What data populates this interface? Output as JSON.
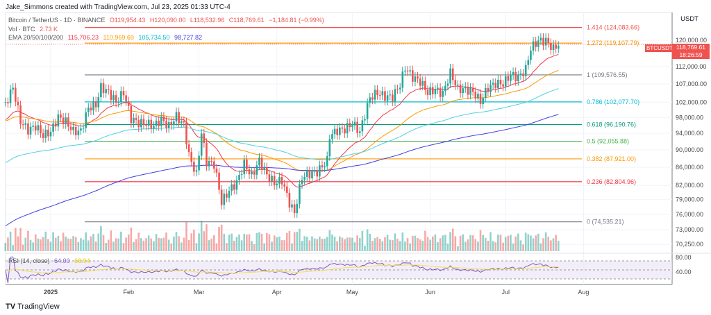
{
  "credit": "Jake_Simmons created with TradingView.com, Jul 23, 2025 01:33 UTC-4",
  "legend": {
    "symbol": "Bitcoin / TetherUS · 1D · BINANCE",
    "open": "O119,954.43",
    "high": "H120,090.00",
    "low": "L118,532.96",
    "close": "C118,769.61",
    "change": "−1,184.81 (−0.99%)",
    "vol_label": "Vol · BTC",
    "vol_value": "2.73 K",
    "ema_label": "EMA 20/50/100/200",
    "ema20": "115,706.23",
    "ema50": "110,969.69",
    "ema100": "105,734.50",
    "ema200": "98,727.82",
    "rsi_label": "RSI (14, close)",
    "rsi": "64.00",
    "rsi_ma": "68.94"
  },
  "currency": "USDT",
  "price_tag": {
    "symbol": "BTCUSDT",
    "price": "118,769.61",
    "countdown": "18:26:59"
  },
  "brand": "TradingView",
  "colors": {
    "up": "#26a69a",
    "down": "#ef5350",
    "ema20": "#f23645",
    "ema50": "#ff9800",
    "ema100": "#4dd0e1",
    "ema200": "#3f3fe0",
    "rsi": "#7e57c2",
    "rsi_ma": "#f5e050"
  },
  "chart_data": {
    "type": "candlestick",
    "title": "Bitcoin / TetherUS · 1D · BINANCE",
    "x_ticks": [
      {
        "label": "2025",
        "day": 0
      },
      {
        "label": "Feb",
        "day": 31
      },
      {
        "label": "Mar",
        "day": 59
      },
      {
        "label": "Apr",
        "day": 90
      },
      {
        "label": "May",
        "day": 120
      },
      {
        "label": "Jun",
        "day": 151
      },
      {
        "label": "Jul",
        "day": 181
      },
      {
        "label": "Aug",
        "day": 212
      }
    ],
    "y_ticks": [
      "120,000.00",
      "112,000.00",
      "107,000.00",
      "102,000.00",
      "98,000.00",
      "94,000.00",
      "90,000.00",
      "86,000.00",
      "82,000.00",
      "79,000.00",
      "76,000.00",
      "73,000.00",
      "70,250.00"
    ],
    "y_tick_values": [
      120000,
      112000,
      107000,
      102000,
      98000,
      94000,
      90000,
      86000,
      82000,
      79000,
      76000,
      73000,
      70250
    ],
    "rsi_ticks": [
      "80.00",
      "40.00"
    ],
    "fib_levels": [
      {
        "label": "1.414 (124,083.66)",
        "value": 124083.66,
        "color": "#ef5350"
      },
      {
        "label": "1.272 (119,107.79)",
        "value": 119107.79,
        "color": "#ff9800"
      },
      {
        "label": "1 (109,576.55)",
        "value": 109576.55,
        "color": "#787b86"
      },
      {
        "label": "0.786 (102,077.70)",
        "value": 102077.7,
        "color": "#00bcd4"
      },
      {
        "label": "0.618 (96,190.76)",
        "value": 96190.76,
        "color": "#089981"
      },
      {
        "label": "0.5 (92,055.88)",
        "value": 92055.88,
        "color": "#4caf50"
      },
      {
        "label": "0.382 (87,921.00)",
        "value": 87921.0,
        "color": "#ff9800"
      },
      {
        "label": "0.236 (82,804.96)",
        "value": 82804.96,
        "color": "#f23645"
      },
      {
        "label": "0 (74,535.21)",
        "value": 74535.21,
        "color": "#787b86"
      }
    ],
    "days": [
      -18,
      -15,
      -12,
      -9,
      -6,
      -3,
      0,
      3,
      6,
      9,
      12,
      15,
      18,
      20,
      23,
      26,
      29,
      32,
      35,
      38,
      41,
      44,
      47,
      50,
      53,
      55,
      58,
      60,
      62,
      65,
      68,
      71,
      74,
      77,
      80,
      83,
      86,
      89,
      92,
      95,
      97,
      100,
      103,
      106,
      110,
      111,
      114,
      117,
      120,
      123,
      127,
      130,
      133,
      136,
      139,
      141,
      144,
      147,
      150,
      153,
      156,
      159,
      162,
      165,
      168,
      171,
      174,
      177,
      180,
      183,
      186,
      189,
      191,
      194,
      197,
      200,
      202
    ],
    "close": [
      101.4,
      106,
      97,
      94.8,
      95.8,
      93.5,
      94.4,
      98.1,
      96.9,
      94.5,
      94.5,
      100.5,
      101.3,
      106.1,
      104.7,
      102,
      104.7,
      97.7,
      96.6,
      96.5,
      95.8,
      97.5,
      95.7,
      98.3,
      96.1,
      88.7,
      84.3,
      94.2,
      87.2,
      86.7,
      78.5,
      80.9,
      82.6,
      86.8,
      84,
      87.5,
      84.3,
      82.5,
      83.1,
      78.3,
      76.3,
      83.8,
      84.5,
      84.9,
      87.5,
      93.4,
      94.7,
      95,
      96.5,
      94.3,
      103.2,
      104.6,
      103.5,
      103.4,
      106.8,
      111.7,
      108.9,
      107.7,
      104.6,
      105.4,
      104.3,
      110.2,
      105.6,
      105.5,
      104.8,
      102.2,
      106,
      107.1,
      107.1,
      109.6,
      108.8,
      111.2,
      117.5,
      119.8,
      119.8,
      117.3,
      118.8
    ],
    "close_unit": "thousand USDT"
  }
}
